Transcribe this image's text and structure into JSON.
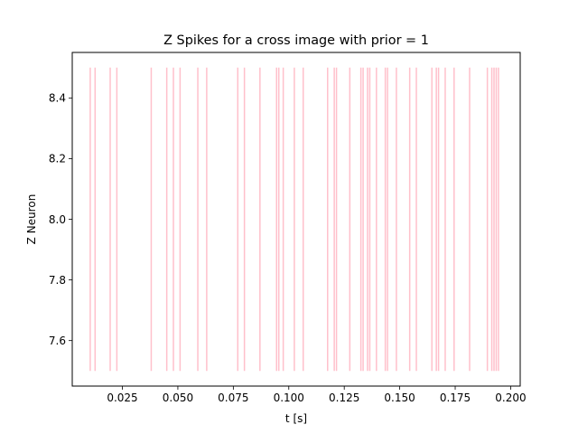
{
  "chart_data": {
    "type": "eventplot",
    "title": "Z Spikes for a cross image with prior = 1",
    "xlabel": "t [s]",
    "ylabel": "Z Neuron",
    "xlim": [
      0.0024,
      0.2043
    ],
    "ylim": [
      7.45,
      8.55
    ],
    "xticks": [
      {
        "value": 0.025,
        "label": "0.025"
      },
      {
        "value": 0.05,
        "label": "0.050"
      },
      {
        "value": 0.075,
        "label": "0.075"
      },
      {
        "value": 0.1,
        "label": "0.100"
      },
      {
        "value": 0.125,
        "label": "0.125"
      },
      {
        "value": 0.15,
        "label": "0.150"
      },
      {
        "value": 0.175,
        "label": "0.175"
      },
      {
        "value": 0.2,
        "label": "0.200"
      }
    ],
    "yticks": [
      {
        "value": 7.6,
        "label": "7.6"
      },
      {
        "value": 7.8,
        "label": "7.8"
      },
      {
        "value": 8.0,
        "label": "8.0"
      },
      {
        "value": 8.2,
        "label": "8.2"
      },
      {
        "value": 8.4,
        "label": "8.4"
      }
    ],
    "grid": false,
    "series": [
      {
        "color": "#ffc0cb",
        "lineoffset": 8.0,
        "linelength": 1.0,
        "events": [
          0.0105,
          0.0127,
          0.0195,
          0.0225,
          0.038,
          0.045,
          0.048,
          0.051,
          0.059,
          0.063,
          0.077,
          0.08,
          0.087,
          0.0945,
          0.0955,
          0.0975,
          0.1025,
          0.1065,
          0.1175,
          0.1205,
          0.1215,
          0.1275,
          0.1325,
          0.1335,
          0.1355,
          0.1365,
          0.1395,
          0.1435,
          0.1445,
          0.1485,
          0.1545,
          0.1575,
          0.1645,
          0.1665,
          0.1675,
          0.1705,
          0.1745,
          0.1815,
          0.1895,
          0.1915,
          0.1925,
          0.1935,
          0.1945
        ]
      }
    ]
  }
}
